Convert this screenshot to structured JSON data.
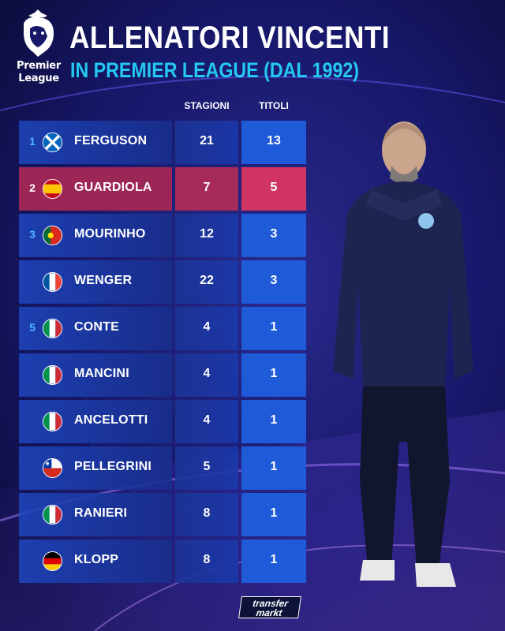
{
  "brand": {
    "logo_line1": "Premier",
    "logo_line2": "League",
    "footer_line1": "transfer",
    "footer_line2": "markt"
  },
  "title": {
    "main": "ALLENATORI VINCENTI",
    "sub": "IN PREMIER LEAGUE (DAL 1992)"
  },
  "columns": {
    "seasons": "STAGIONI",
    "titles": "TITOLI"
  },
  "colors": {
    "background": "#11124a",
    "row": "#1f46be",
    "titles_cell": "#1f5ad8",
    "highlight": "#9c2656",
    "highlight_titles": "#d03462",
    "subtitle": "#24c8f2"
  },
  "rows": [
    {
      "rank": "1",
      "flag": "scotland-flag",
      "name": "FERGUSON",
      "seasons": "21",
      "titles": "13",
      "highlight": false
    },
    {
      "rank": "2",
      "flag": "spain-flag",
      "name": "GUARDIOLA",
      "seasons": "7",
      "titles": "5",
      "highlight": true
    },
    {
      "rank": "3",
      "flag": "portugal-flag",
      "name": "MOURINHO",
      "seasons": "12",
      "titles": "3",
      "highlight": false
    },
    {
      "rank": "",
      "flag": "france-flag",
      "name": "WENGER",
      "seasons": "22",
      "titles": "3",
      "highlight": false
    },
    {
      "rank": "5",
      "flag": "italy-flag",
      "name": "CONTE",
      "seasons": "4",
      "titles": "1",
      "highlight": false
    },
    {
      "rank": "",
      "flag": "italy-flag",
      "name": "MANCINI",
      "seasons": "4",
      "titles": "1",
      "highlight": false
    },
    {
      "rank": "",
      "flag": "italy-flag",
      "name": "ANCELOTTI",
      "seasons": "4",
      "titles": "1",
      "highlight": false
    },
    {
      "rank": "",
      "flag": "chile-flag",
      "name": "PELLEGRINI",
      "seasons": "5",
      "titles": "1",
      "highlight": false
    },
    {
      "rank": "",
      "flag": "italy-flag",
      "name": "RANIERI",
      "seasons": "8",
      "titles": "1",
      "highlight": false
    },
    {
      "rank": "",
      "flag": "germany-flag",
      "name": "KLOPP",
      "seasons": "8",
      "titles": "1",
      "highlight": false
    }
  ],
  "photo": {
    "icon": "coach-photo"
  }
}
